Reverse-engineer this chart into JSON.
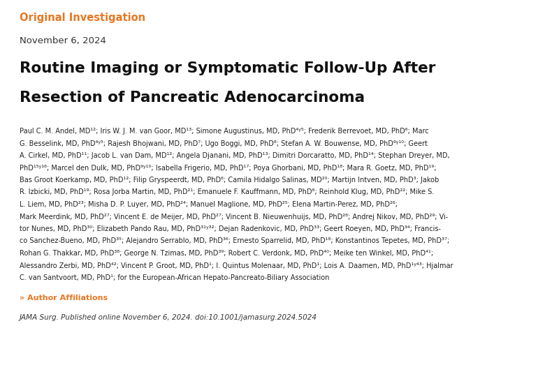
{
  "background_color": "#ffffff",
  "label_text": "Original Investigation",
  "label_color": "#E87722",
  "date_text": "November 6, 2024",
  "date_color": "#333333",
  "title_line1": "Routine Imaging or Symptomatic Follow-Up After",
  "title_line2": "Resection of Pancreatic Adenocarcinoma",
  "title_color": "#111111",
  "authors_lines": [
    "Paul C. M. Andel, MD¹²; Iris W. J. M. van Goor, MD¹³; Simone Augustinus, MD, PhD⁴ʸ⁵; Frederik Berrevoet, MD, PhD⁶; Marc",
    "G. Besselink, MD, PhD⁴ʸ⁵; Rajesh Bhojwani, MD, PhD⁷; Ugo Boggi, MD, PhD⁸; Stefan A. W. Bouwense, MD, PhD⁹ʸ¹⁰; Geert",
    "A. Cirkel, MD, PhD¹¹; Jacob L. van Dam, MD¹²; Angela Djanani, MD, PhD¹³; Dimitri Dorcaratto, MD, PhD¹⁴; Stephan Dreyer, MD,",
    "PhD¹⁵ʸ¹⁶; Marcel den Dulk, MD, PhD⁹ʸ¹⁰; Isabella Frigerio, MD, PhD¹⁷; Poya Ghorbani, MD, PhD¹⁸; Mara R. Goetz, MD, PhD¹⁹;",
    "Bas Groot Koerkamp, MD, PhD¹²; Filip Gryspeerdt, MD, PhD⁶; Camila Hidalgo Salinas, MD²⁰; Martijn Intven, MD, PhD³; Jakob",
    "R. Izbicki, MD, PhD¹⁹; Rosa Jorba Martin, MD, PhD²¹; Emanuele F. Kauffmann, MD, PhD⁸; Reinhold Klug, MD, PhD²²; Mike S.",
    "L. Liem, MD, PhD²³; Misha D. P. Luyer, MD, PhD²⁴; Manuel Maglione, MD, PhD²⁵; Elena Martin-Perez, MD, PhD²⁶;",
    "Mark Meerdink, MD, PhD²⁷; Vincent E. de Meijer, MD, PhD²⁷; Vincent B. Nieuwenhuijs, MD, PhD²⁸; Andrej Nikov, MD, PhD²⁹; Vi-",
    "tor Nunes, MD, PhD³⁰; Elizabeth Pando Rau, MD, PhD³¹ʸ³²; Dejan Radenkovic, MD, PhD³³; Geert Roeyen, MD, PhD³⁴; Francis-",
    "co Sanchez-Bueno, MD, PhD³⁵; Alejandro Serrablo, MD, PhD³⁶; Ernesto Sparrelid, MD, PhD¹⁸; Konstantinos Tepetes, MD, PhD³⁷;",
    "Rohan G. Thakkar, MD, PhD³⁸; George N. Tzimas, MD, PhD³⁹; Robert C. Verdonk, MD, PhD⁴⁰; Meike ten Winkel, MD, PhD⁴¹;",
    "Alessandro Zerbi, MD, PhD⁴²; Vincent P. Groot, MD, PhD¹; I. Quintus Molenaar, MD, PhD¹; Lois A. Daamen, MD, PhD¹ʸ⁴³; Hjalmar",
    "C. van Santvoort, MD, PhD¹; for the European-African Hepato-Pancreato-Biliary Association"
  ],
  "authors_color": "#222222",
  "affiliations_link": "» Author Affiliations",
  "affiliations_color": "#E87722",
  "journal_text": "JAMA Surg. Published online November 6, 2024. doi:10.1001/jamasurg.2024.5024",
  "journal_color": "#333333"
}
